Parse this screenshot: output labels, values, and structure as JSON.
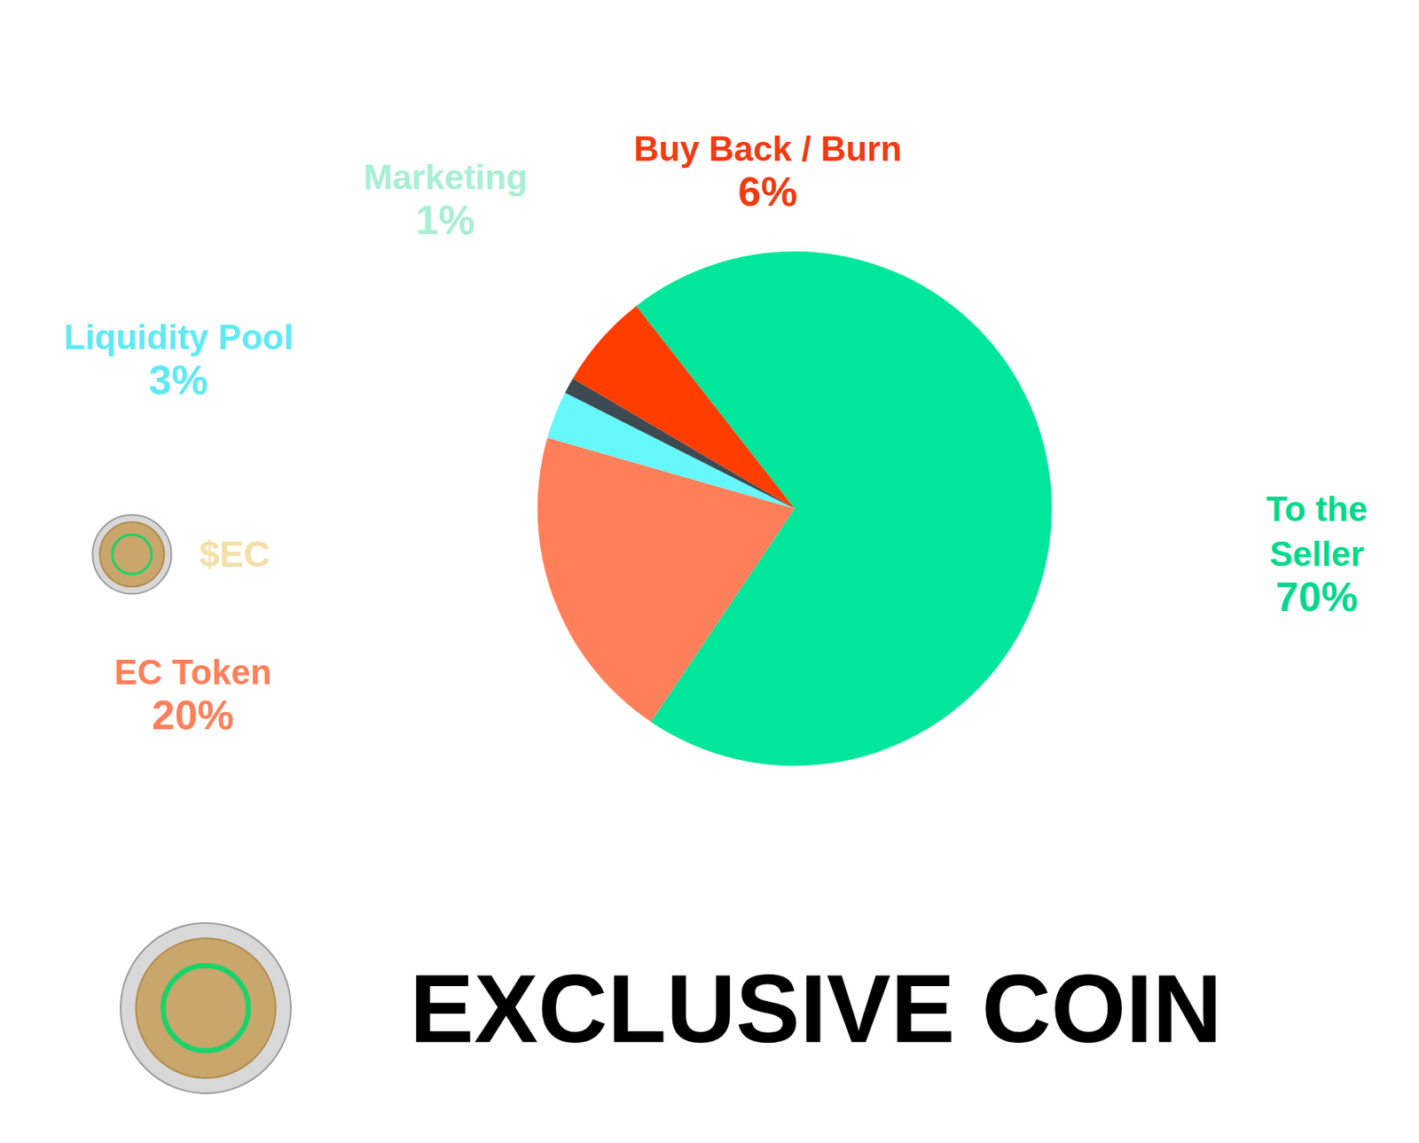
{
  "chart_data": {
    "type": "pie",
    "title": "EXCLUSIVE COIN",
    "categories": [
      "To the Seller",
      "EC Token",
      "Liquidity Pool",
      "Marketing",
      "Buy Back / Burn"
    ],
    "values": [
      70,
      20,
      3,
      1,
      6
    ],
    "value_labels": [
      "70%",
      "20%",
      "3%",
      "1%",
      "6%"
    ],
    "colors": [
      "#00E69A",
      "#FF7F5A",
      "#66F7FA",
      "#3D4A52",
      "#FF3D00"
    ],
    "annotations": [
      "$EC"
    ],
    "data_labels": true
  }
}
